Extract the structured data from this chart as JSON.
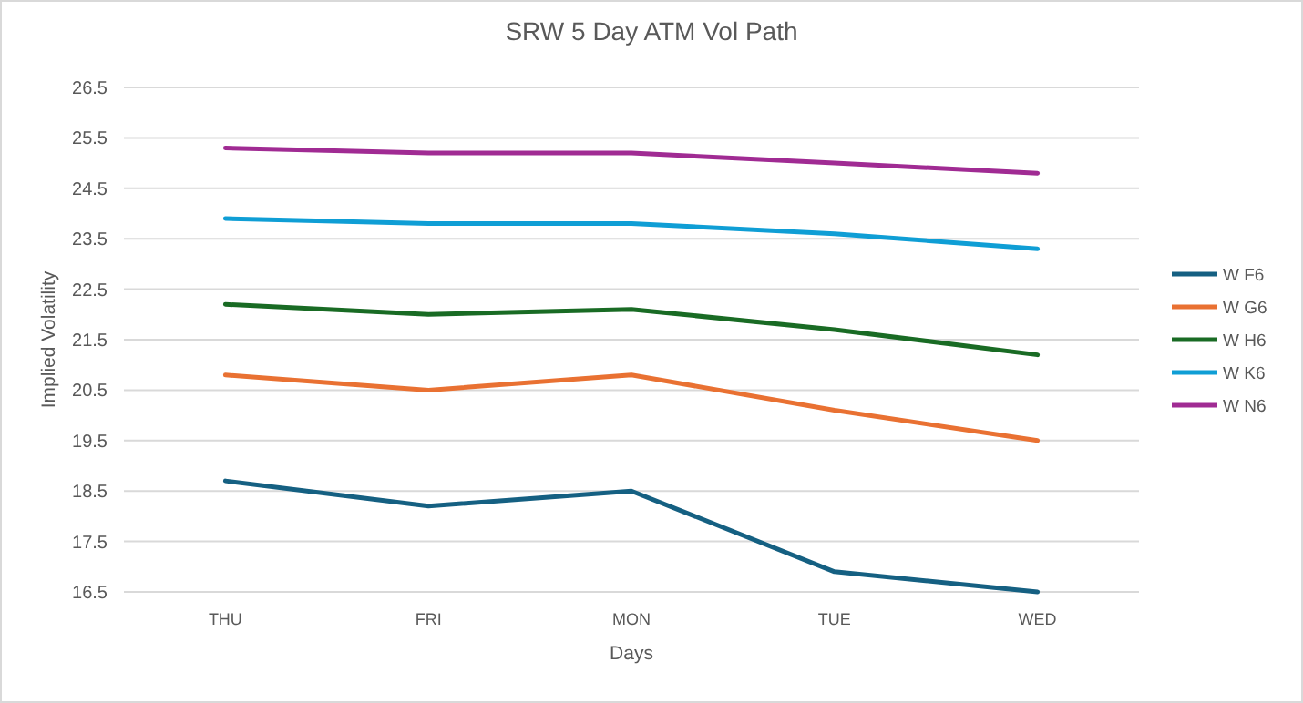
{
  "chart_data": {
    "type": "line",
    "title": "SRW 5 Day ATM Vol Path",
    "xlabel": "Days",
    "ylabel": "Implied Volatility",
    "categories": [
      "THU",
      "FRI",
      "MON",
      "TUE",
      "WED"
    ],
    "series": [
      {
        "name": "W F6",
        "color": "#156082",
        "values": [
          18.7,
          18.2,
          18.5,
          16.9,
          16.5
        ]
      },
      {
        "name": "W G6",
        "color": "#e97132",
        "values": [
          20.8,
          20.5,
          20.8,
          20.1,
          19.5
        ]
      },
      {
        "name": "W H6",
        "color": "#196b24",
        "values": [
          22.2,
          22.0,
          22.1,
          21.7,
          21.2
        ]
      },
      {
        "name": "W K6",
        "color": "#0f9ed5",
        "values": [
          23.9,
          23.8,
          23.8,
          23.6,
          23.3
        ]
      },
      {
        "name": "W N6",
        "color": "#a02b93",
        "values": [
          25.3,
          25.2,
          25.2,
          25.0,
          24.8
        ]
      }
    ],
    "ylim": [
      16.5,
      26.5
    ],
    "yticks": [
      16.5,
      17.5,
      18.5,
      19.5,
      20.5,
      21.5,
      22.5,
      23.5,
      24.5,
      25.5,
      26.5
    ],
    "grid": "y",
    "legend": "right",
    "marker": "none",
    "line_style": "solid"
  }
}
